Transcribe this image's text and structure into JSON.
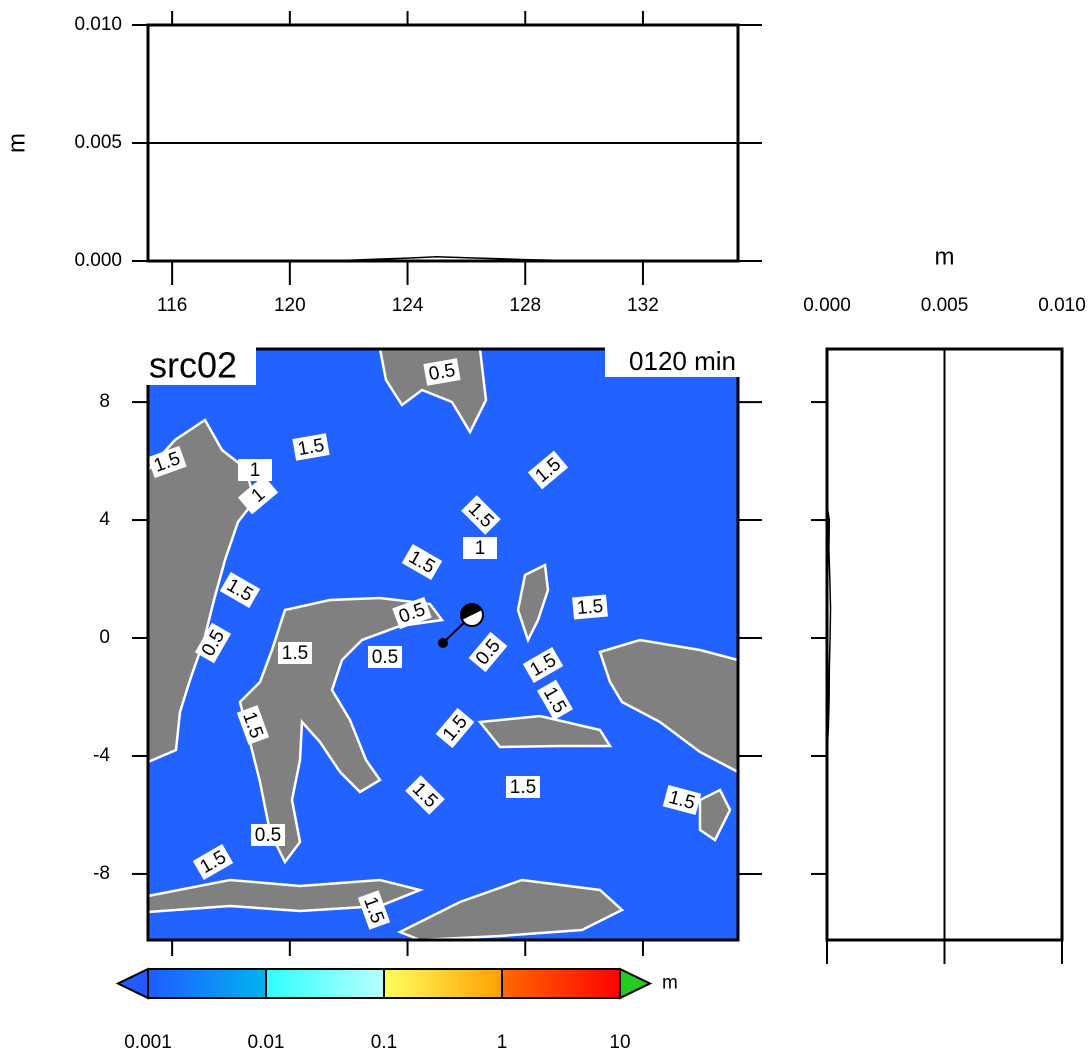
{
  "chart_data": [
    {
      "type": "line",
      "ylabel": "m",
      "xlim": [
        115.18,
        135.23
      ],
      "ylim": [
        0,
        0.01
      ],
      "xticks": [
        116,
        120,
        124,
        128,
        132
      ],
      "yticks": [
        {
          "value": 0,
          "label": "0.000"
        },
        {
          "value": 0.005,
          "label": "0.005"
        },
        {
          "value": 0.01,
          "label": "0.010"
        }
      ],
      "grid": true,
      "color": "#000000",
      "x": [
        121,
        122,
        123,
        124,
        125,
        126,
        127,
        128,
        129,
        130
      ],
      "values": [
        0,
        3e-05,
        8e-05,
        0.00012,
        0.00018,
        0.00014,
        0.0001,
        6e-05,
        3e-05,
        0
      ]
    },
    {
      "type": "map",
      "title": "src02",
      "annotation": "0120 min",
      "xlim": [
        115.18,
        135.23
      ],
      "ylim": [
        -10.24,
        9.8
      ],
      "yticks": [
        8,
        4,
        0,
        -4,
        -8
      ],
      "ocean_color": "#2262ff",
      "land_color": "#808080",
      "contour_labels": [
        "1.5",
        "1.5",
        "1",
        "1",
        "1.5",
        "1.5",
        "1",
        "1.5",
        "1.5",
        "0.5",
        "1.5",
        "0.5",
        "1.5",
        "0.5",
        "0.5",
        "1.5",
        "1.5",
        "1.5",
        "1.5",
        "1.5",
        "1.5",
        "1.5",
        "0.5",
        "1.5",
        "1.5",
        "0.5"
      ]
    },
    {
      "type": "profile",
      "xlabel": "m",
      "xlim": [
        0,
        0.01
      ],
      "ylim": [
        -10.24,
        9.8
      ],
      "xticks": [
        {
          "value": 0,
          "label": "0.000"
        },
        {
          "value": 0.005,
          "label": "0.005"
        },
        {
          "value": 0.01,
          "label": "0.010"
        }
      ],
      "yticks": [
        8,
        4,
        0,
        -4,
        -8
      ],
      "grid": true,
      "color": "#000000",
      "y": [
        4.5,
        4,
        3,
        2,
        1,
        0,
        -1,
        -2,
        -3,
        -4
      ],
      "values": [
        0,
        0.0001,
        8e-05,
        0.00012,
        0.00015,
        0.00013,
        0.0001,
        9e-05,
        6e-05,
        0
      ]
    },
    {
      "type": "colorbar",
      "label": "m",
      "log": true,
      "ticks": [
        0.001,
        0.01,
        0.1,
        1,
        10
      ],
      "colors": [
        [
          "#1f5cff",
          "#00b4f0"
        ],
        [
          "#30ffff",
          "#b8ffff"
        ],
        [
          "#ffff60",
          "#ffa000"
        ],
        [
          "#ff6a00",
          "#ff0000"
        ]
      ],
      "under_color": "#1f5cff",
      "over_color": "#22cc22"
    }
  ]
}
